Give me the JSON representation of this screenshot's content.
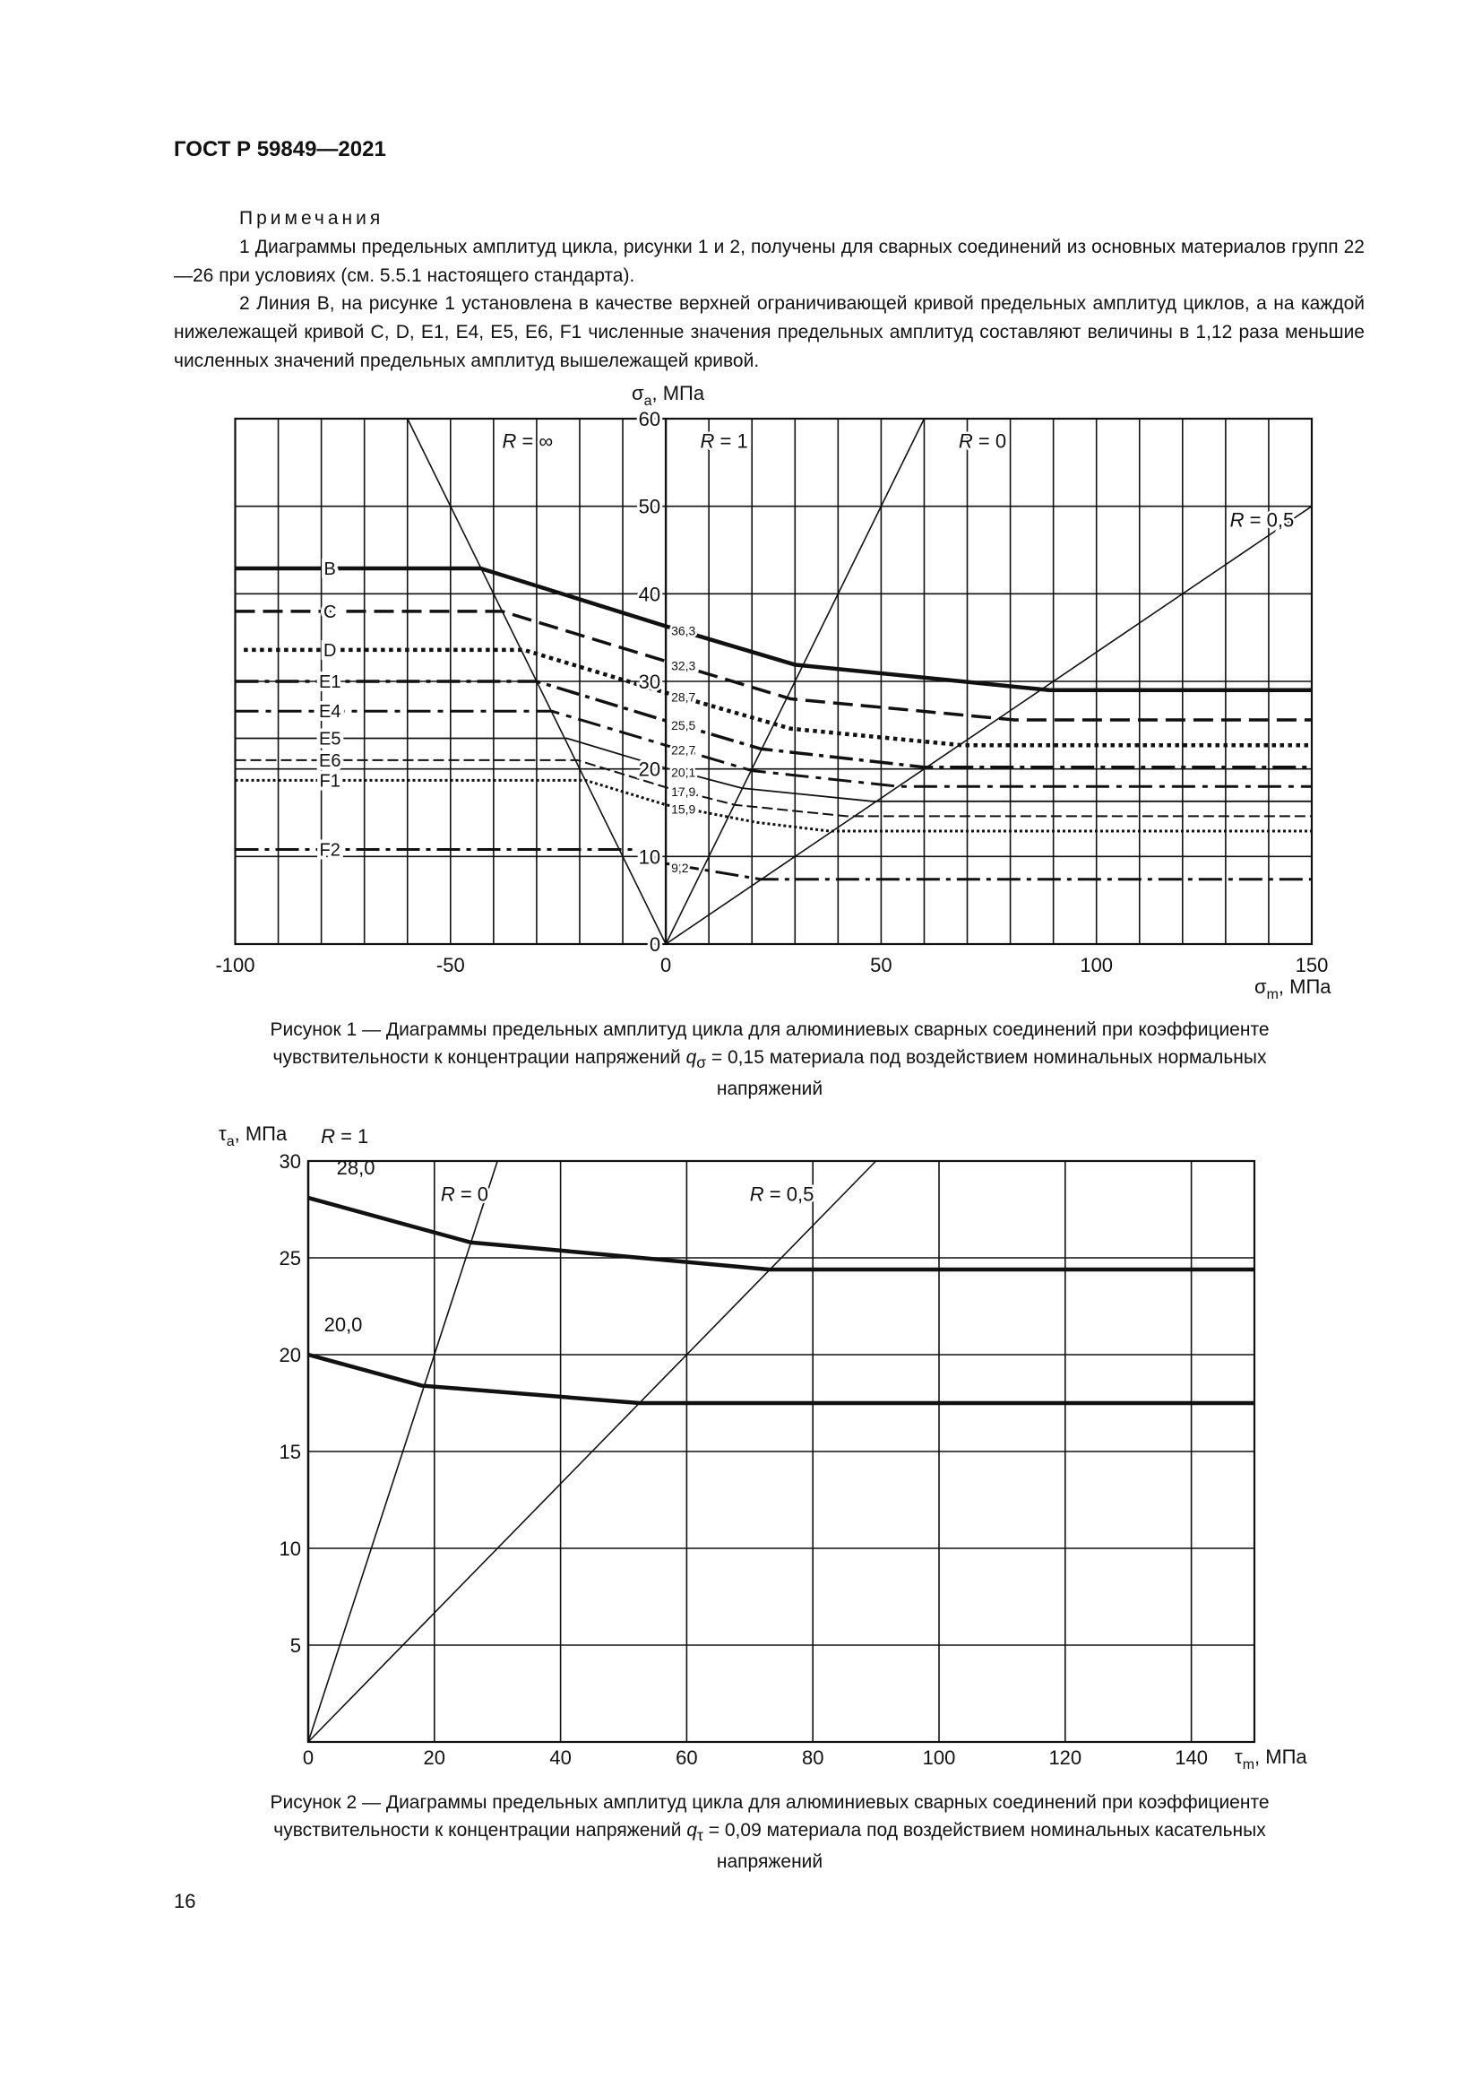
{
  "header": {
    "doc_id": "ГОСТ Р 59849—2021"
  },
  "notes": {
    "title": "Примечания",
    "items": [
      "1 Диаграммы предельных амплитуд цикла, рисунки 1 и 2, получены для сварных соединений из основных материалов групп 22—26 при условиях (см. 5.5.1 настоящего стандарта).",
      "2 Линия B, на рисунке 1 установлена в качестве верхней ограничивающей кривой предельных амплитуд циклов, а на каждой нижележащей кривой C, D, E1, E4, E5, E6, F1 численные значения предельных амплитуд со­ставляют величины в 1,12 раза меньшие численных значений предельных амплитуд вышележащей кривой."
    ]
  },
  "figure1": {
    "caption_line1": "Рисунок 1 — Диаграммы предельных амплитуд цикла для алюминиевых сварных соединений при коэффициенте",
    "caption_line2_a": "чувствительности к концентрации напряжений ",
    "caption_q": "q",
    "caption_sub": "σ",
    "caption_line2_b": " = 0,15 материала под воздействием номинальных нормальных",
    "caption_line3": "напряжений"
  },
  "figure2": {
    "caption_line1": "Рисунок 2 — Диаграммы предельных амплитуд цикла для алюминиевых сварных соединений при коэффициенте",
    "caption_line2_a": "чувствительности к концентрации напряжений ",
    "caption_q": "q",
    "caption_sub": "τ",
    "caption_line2_b": " = 0,09 материала под воздействием номинальных касательных",
    "caption_line3": "напряжений"
  },
  "page_number": "16",
  "chart_data": [
    {
      "type": "line",
      "xlabel": {
        "symbol": "σ",
        "sub": "m",
        "unit": ", МПа"
      },
      "ylabel": {
        "symbol": "σ",
        "sub": "a",
        "unit": ", МПа"
      },
      "xlim": [
        -100,
        150
      ],
      "ylim": [
        0,
        60
      ],
      "x_ticks": [
        "-100",
        "-50",
        "0",
        "50",
        "100",
        "150"
      ],
      "x_tick_values": [
        -100,
        -50,
        0,
        50,
        100,
        150
      ],
      "y_ticks": [
        "0",
        "10",
        "20",
        "30",
        "40",
        "50",
        "60"
      ],
      "y_tick_values": [
        0,
        10,
        20,
        30,
        40,
        50,
        60
      ],
      "grid": true,
      "grid_step_x": 10,
      "grid_step_y": 10,
      "series": [
        {
          "name": "B",
          "value_at_zero": "36,3",
          "points": [
            [
              -100,
              42.9
            ],
            [
              -43,
              42.9
            ],
            [
              0,
              36.3
            ],
            [
              30,
              31.9
            ],
            [
              89,
              29
            ],
            [
              150,
              29
            ]
          ]
        },
        {
          "name": "C",
          "value_at_zero": "32,3",
          "points": [
            [
              -100,
              38
            ],
            [
              -38,
              38
            ],
            [
              0,
              32.3
            ],
            [
              29,
              28
            ],
            [
              81,
              25.6
            ],
            [
              150,
              25.6
            ]
          ]
        },
        {
          "name": "D",
          "value_at_zero": "28,7",
          "points": [
            [
              -98,
              33.6
            ],
            [
              -33,
              33.6
            ],
            [
              0,
              28.7
            ],
            [
              29,
              24.6
            ],
            [
              69,
              22.7
            ],
            [
              150,
              22.7
            ]
          ]
        },
        {
          "name": "E1",
          "value_at_zero": "25,5",
          "points": [
            [
              -100,
              30
            ],
            [
              -30,
              30
            ],
            [
              0,
              25.5
            ],
            [
              22,
              22.3
            ],
            [
              60,
              20.2
            ],
            [
              150,
              20.2
            ]
          ]
        },
        {
          "name": "E4",
          "value_at_zero": "22,7",
          "points": [
            [
              -100,
              26.6
            ],
            [
              -26.5,
              26.6
            ],
            [
              0,
              22.7
            ],
            [
              20,
              19.8
            ],
            [
              54,
              18
            ],
            [
              150,
              18
            ]
          ]
        },
        {
          "name": "E5",
          "value_at_zero": "20,1",
          "points": [
            [
              -100,
              23.5
            ],
            [
              -23,
              23.5
            ],
            [
              0,
              20.1
            ],
            [
              17.7,
              17.8
            ],
            [
              48,
              16.3
            ],
            [
              150,
              16.3
            ]
          ]
        },
        {
          "name": "E6",
          "value_at_zero": "17,9",
          "points": [
            [
              -100,
              21
            ],
            [
              -20.5,
              21
            ],
            [
              0,
              17.9
            ],
            [
              16,
              15.9
            ],
            [
              42,
              14.6
            ],
            [
              150,
              14.6
            ]
          ]
        },
        {
          "name": "F1",
          "value_at_zero": "15,9",
          "points": [
            [
              -100,
              18.7
            ],
            [
              -18.6,
              18.7
            ],
            [
              0,
              15.9
            ],
            [
              21,
              13.9
            ],
            [
              38,
              12.9
            ],
            [
              150,
              12.9
            ]
          ]
        },
        {
          "name": "F2",
          "value_at_zero": "9,2",
          "points": [
            [
              -100,
              10.8
            ],
            [
              -7.6,
              10.8
            ],
            [
              0,
              9.2
            ],
            [
              22,
              7.4
            ],
            [
              150,
              7.4
            ]
          ]
        }
      ],
      "reference_lines": [
        {
          "label": "R = ∞",
          "points": [
            [
              -60,
              60
            ],
            [
              0,
              0
            ]
          ],
          "label_at": [
            -38,
            57.5
          ]
        },
        {
          "label": "R = 1",
          "points": [],
          "label_at": [
            8,
            57.5
          ]
        },
        {
          "label": "R = 0",
          "points": [
            [
              0,
              0
            ],
            [
              60,
              60
            ]
          ],
          "label_at": [
            68,
            57.5
          ]
        },
        {
          "label": "R = 0,5",
          "points": [
            [
              0,
              0
            ],
            [
              150,
              50
            ]
          ],
          "label_at": [
            131,
            48.5
          ]
        }
      ]
    },
    {
      "type": "line",
      "xlabel": {
        "symbol": "τ",
        "sub": "m",
        "unit": ", МПа"
      },
      "ylabel": {
        "symbol": "τ",
        "sub": "a",
        "unit": ", МПа"
      },
      "xlim": [
        0,
        150
      ],
      "ylim": [
        0,
        30
      ],
      "x_ticks": [
        "0",
        "20",
        "40",
        "60",
        "80",
        "100",
        "120",
        "140"
      ],
      "x_tick_values": [
        0,
        20,
        40,
        60,
        80,
        100,
        120,
        140
      ],
      "y_ticks": [
        "5",
        "10",
        "15",
        "20",
        "25",
        "30"
      ],
      "y_tick_values": [
        5,
        10,
        15,
        20,
        25,
        30
      ],
      "grid": true,
      "grid_step_x": 20,
      "grid_step_y": 5,
      "series": [
        {
          "name": "28,0",
          "points": [
            [
              0,
              28.1
            ],
            [
              25.7,
              25.8
            ],
            [
              73,
              24.4
            ],
            [
              150,
              24.4
            ]
          ]
        },
        {
          "name": "20,0",
          "points": [
            [
              0,
              20.0
            ],
            [
              18,
              18.4
            ],
            [
              52.5,
              17.5
            ],
            [
              150,
              17.5
            ]
          ]
        }
      ],
      "reference_lines": [
        {
          "label": "R = 1",
          "points": [],
          "label_at": [
            2,
            31.3
          ]
        },
        {
          "label": "R = 0",
          "points": [
            [
              0,
              0
            ],
            [
              30,
              30
            ]
          ],
          "label_at": [
            21,
            28.3
          ]
        },
        {
          "label": "R = 0,5",
          "points": [
            [
              0,
              0
            ],
            [
              90,
              30
            ]
          ],
          "label_at": [
            70,
            28.3
          ]
        }
      ]
    }
  ]
}
